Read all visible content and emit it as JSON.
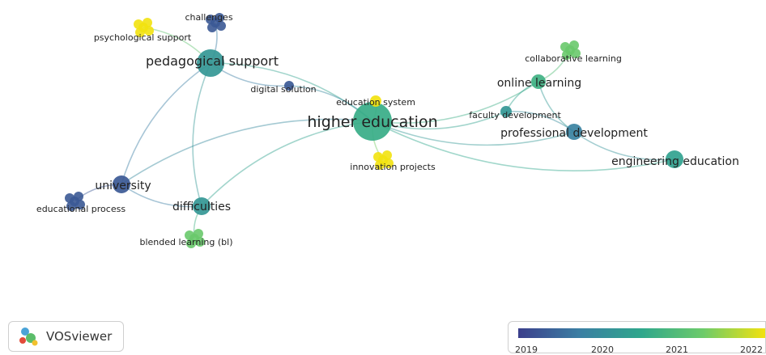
{
  "network": {
    "nodes": [
      {
        "id": "higher_education",
        "label": "higher education",
        "year": 2020.6
      },
      {
        "id": "pedagogical_support",
        "label": "pedagogical support",
        "year": 2020.2
      },
      {
        "id": "psychological_support",
        "label": "psychological support",
        "year": 2022
      },
      {
        "id": "challenges",
        "label": "challenges",
        "year": 2019.3
      },
      {
        "id": "digital_solution",
        "label": "digital solution",
        "year": 2019.3
      },
      {
        "id": "education_system",
        "label": "education system",
        "year": 2022
      },
      {
        "id": "innovation_projects",
        "label": "innovation projects",
        "year": 2022
      },
      {
        "id": "university",
        "label": "university",
        "year": 2019.3
      },
      {
        "id": "educational_process",
        "label": "educational process",
        "year": 2019.3
      },
      {
        "id": "difficulties",
        "label": "difficulties",
        "year": 2020.2
      },
      {
        "id": "blended_learning",
        "label": "blended learning (bl)",
        "year": 2021.2
      },
      {
        "id": "online_learning",
        "label": "online learning",
        "year": 2020.7
      },
      {
        "id": "collaborative_learning",
        "label": "collaborative learning",
        "year": 2021.2
      },
      {
        "id": "faculty_development",
        "label": "faculty development",
        "year": 2020.2
      },
      {
        "id": "professional_development",
        "label": "professional development",
        "year": 2019.8
      },
      {
        "id": "engineering_education",
        "label": "engineering education",
        "year": 2020.4
      }
    ],
    "links": [
      [
        "higher_education",
        "pedagogical_support"
      ],
      [
        "higher_education",
        "online_learning"
      ],
      [
        "higher_education",
        "professional_development"
      ],
      [
        "higher_education",
        "faculty_development"
      ],
      [
        "higher_education",
        "university"
      ],
      [
        "higher_education",
        "difficulties"
      ],
      [
        "higher_education",
        "digital_solution"
      ],
      [
        "higher_education",
        "education_system"
      ],
      [
        "higher_education",
        "innovation_projects"
      ],
      [
        "higher_education",
        "engineering_education"
      ],
      [
        "pedagogical_support",
        "psychological_support"
      ],
      [
        "pedagogical_support",
        "challenges"
      ],
      [
        "pedagogical_support",
        "digital_solution"
      ],
      [
        "pedagogical_support",
        "university"
      ],
      [
        "pedagogical_support",
        "difficulties"
      ],
      [
        "university",
        "educational_process"
      ],
      [
        "university",
        "difficulties"
      ],
      [
        "difficulties",
        "blended_learning"
      ],
      [
        "online_learning",
        "collaborative_learning"
      ],
      [
        "online_learning",
        "faculty_development"
      ],
      [
        "online_learning",
        "professional_development"
      ],
      [
        "professional_development",
        "engineering_education"
      ],
      [
        "professional_development",
        "faculty_development"
      ]
    ]
  },
  "logo": {
    "name": "VOSviewer",
    "icon": "vosviewer-logo-icon"
  },
  "legend": {
    "colors": [
      "#3b3f8c",
      "#3b7fa3",
      "#2fa78c",
      "#6dcb6a",
      "#f2e20f"
    ],
    "ticks": [
      "2019",
      "2020",
      "2021",
      "2022"
    ]
  }
}
